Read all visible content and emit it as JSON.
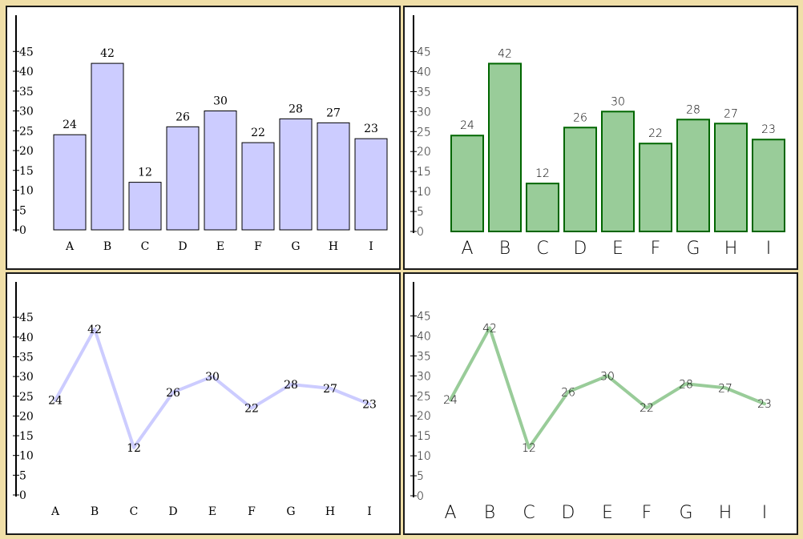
{
  "colors": {
    "page_background": "#f0dfa8",
    "purple_fill": "#ccccff",
    "purple_line": "#ccccff",
    "green_fill": "#99cc99",
    "green_stroke": "#006600",
    "green_line": "#99cc99"
  },
  "chart_data": [
    {
      "type": "bar",
      "style": "purple",
      "categories": [
        "A",
        "B",
        "C",
        "D",
        "E",
        "F",
        "G",
        "H",
        "I"
      ],
      "values": [
        24,
        42,
        12,
        26,
        30,
        22,
        28,
        27,
        23
      ],
      "yticks": [
        0,
        5,
        10,
        15,
        20,
        25,
        30,
        35,
        40,
        45
      ],
      "ylim": [
        0,
        50
      ],
      "data_labels": true,
      "grid": false
    },
    {
      "type": "bar",
      "style": "green",
      "categories": [
        "A",
        "B",
        "C",
        "D",
        "E",
        "F",
        "G",
        "H",
        "I"
      ],
      "values": [
        24,
        42,
        12,
        26,
        30,
        22,
        28,
        27,
        23
      ],
      "yticks": [
        0,
        5,
        10,
        15,
        20,
        25,
        30,
        35,
        40,
        45
      ],
      "ylim": [
        0,
        50
      ],
      "data_labels": true,
      "grid": false
    },
    {
      "type": "line",
      "style": "purple",
      "categories": [
        "A",
        "B",
        "C",
        "D",
        "E",
        "F",
        "G",
        "H",
        "I"
      ],
      "values": [
        24,
        42,
        12,
        26,
        30,
        22,
        28,
        27,
        23
      ],
      "yticks": [
        0,
        5,
        10,
        15,
        20,
        25,
        30,
        35,
        40,
        45
      ],
      "ylim": [
        0,
        50
      ],
      "data_labels": true,
      "grid": false
    },
    {
      "type": "line",
      "style": "green",
      "categories": [
        "A",
        "B",
        "C",
        "D",
        "E",
        "F",
        "G",
        "H",
        "I"
      ],
      "values": [
        24,
        42,
        12,
        26,
        30,
        22,
        28,
        27,
        23
      ],
      "yticks": [
        0,
        5,
        10,
        15,
        20,
        25,
        30,
        35,
        40,
        45
      ],
      "ylim": [
        0,
        50
      ],
      "data_labels": true,
      "grid": false
    }
  ]
}
